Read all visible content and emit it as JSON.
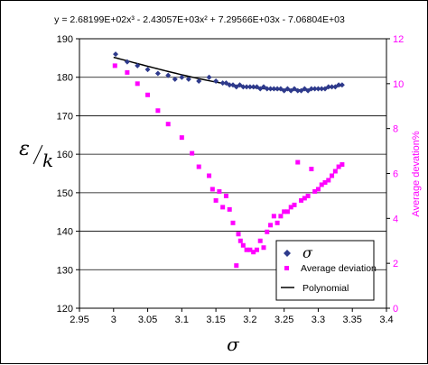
{
  "chart_data": {
    "type": "scatter",
    "equation": "y = 2.68199E+02x³ - 2.43057E+03x² + 7.29566E+03x - 7.06804E+03",
    "xlabel": "σ",
    "ylabel_num": "ε",
    "ylabel_den": "k",
    "y2label": "Average devation%",
    "xlim": [
      2.95,
      3.4
    ],
    "ylim": [
      120,
      190
    ],
    "y2lim": [
      0,
      12
    ],
    "x_ticks": [
      "2.95",
      "3",
      "3.05",
      "3.1",
      "3.15",
      "3.2",
      "3.25",
      "3.3",
      "3.35",
      "3.4"
    ],
    "y_ticks": [
      "120",
      "130",
      "140",
      "150",
      "160",
      "170",
      "180",
      "190"
    ],
    "y2_ticks": [
      "0",
      "2",
      "4",
      "6",
      "8",
      "10",
      "12"
    ],
    "grid": "horizontal",
    "legend_position": "bottom-right",
    "colors": {
      "sigma": "#2e3a8c",
      "deviation": "#ff00ff",
      "polynomial": "#000000",
      "grid": "#000000"
    },
    "series": [
      {
        "name": "σ",
        "axis": "left",
        "marker": "diamond",
        "x": [
          3.003,
          3.02,
          3.035,
          3.05,
          3.065,
          3.08,
          3.09,
          3.1,
          3.11,
          3.125,
          3.14,
          3.15,
          3.16,
          3.165,
          3.17,
          3.175,
          3.18,
          3.185,
          3.19,
          3.195,
          3.2,
          3.205,
          3.21,
          3.215,
          3.22,
          3.225,
          3.23,
          3.235,
          3.24,
          3.245,
          3.25,
          3.255,
          3.26,
          3.265,
          3.27,
          3.275,
          3.28,
          3.285,
          3.29,
          3.295,
          3.3,
          3.305,
          3.31,
          3.315,
          3.32,
          3.325,
          3.33,
          3.335
        ],
        "y": [
          186,
          184,
          183,
          182,
          181,
          180.5,
          179.5,
          180,
          179.5,
          179,
          180,
          179,
          178.5,
          178.5,
          178,
          178,
          177.5,
          178,
          177.5,
          177.5,
          177.5,
          177.5,
          177.5,
          177,
          177.5,
          177,
          177,
          177,
          177,
          177,
          176.5,
          177,
          176.5,
          177,
          176.5,
          176.5,
          177,
          176.5,
          177,
          177,
          177,
          177,
          177,
          177.5,
          177.5,
          177.5,
          178,
          178
        ]
      },
      {
        "name": "Average deviation",
        "axis": "right",
        "marker": "square",
        "x": [
          3.002,
          3.02,
          3.035,
          3.05,
          3.065,
          3.08,
          3.1,
          3.115,
          3.125,
          3.14,
          3.145,
          3.15,
          3.155,
          3.16,
          3.165,
          3.17,
          3.175,
          3.18,
          3.183,
          3.186,
          3.19,
          3.195,
          3.2,
          3.205,
          3.21,
          3.215,
          3.22,
          3.225,
          3.23,
          3.235,
          3.24,
          3.245,
          3.25,
          3.255,
          3.26,
          3.265,
          3.27,
          3.275,
          3.28,
          3.285,
          3.29,
          3.295,
          3.3,
          3.305,
          3.31,
          3.315,
          3.32,
          3.325,
          3.33,
          3.335
        ],
        "y": [
          10.8,
          10.5,
          10,
          9.5,
          8.8,
          8.2,
          7.6,
          6.9,
          6.3,
          5.9,
          5.3,
          4.8,
          5.2,
          4.5,
          5,
          4.4,
          3.8,
          1.9,
          3.3,
          3.0,
          2.8,
          2.6,
          2.6,
          2.5,
          2.6,
          3.0,
          2.7,
          3.4,
          3.7,
          4.1,
          3.8,
          4.1,
          4.3,
          4.3,
          4.5,
          4.6,
          6.5,
          4.8,
          4.9,
          5,
          6.2,
          5.2,
          5.3,
          5.5,
          5.6,
          5.7,
          5.9,
          6.1,
          6.3,
          6.4
        ]
      }
    ],
    "polynomial": {
      "name": "Polynomial",
      "coefficients": [
        268.199,
        -2430.57,
        7295.66,
        -7068.04
      ],
      "x_range": [
        3.0,
        3.335
      ]
    }
  }
}
